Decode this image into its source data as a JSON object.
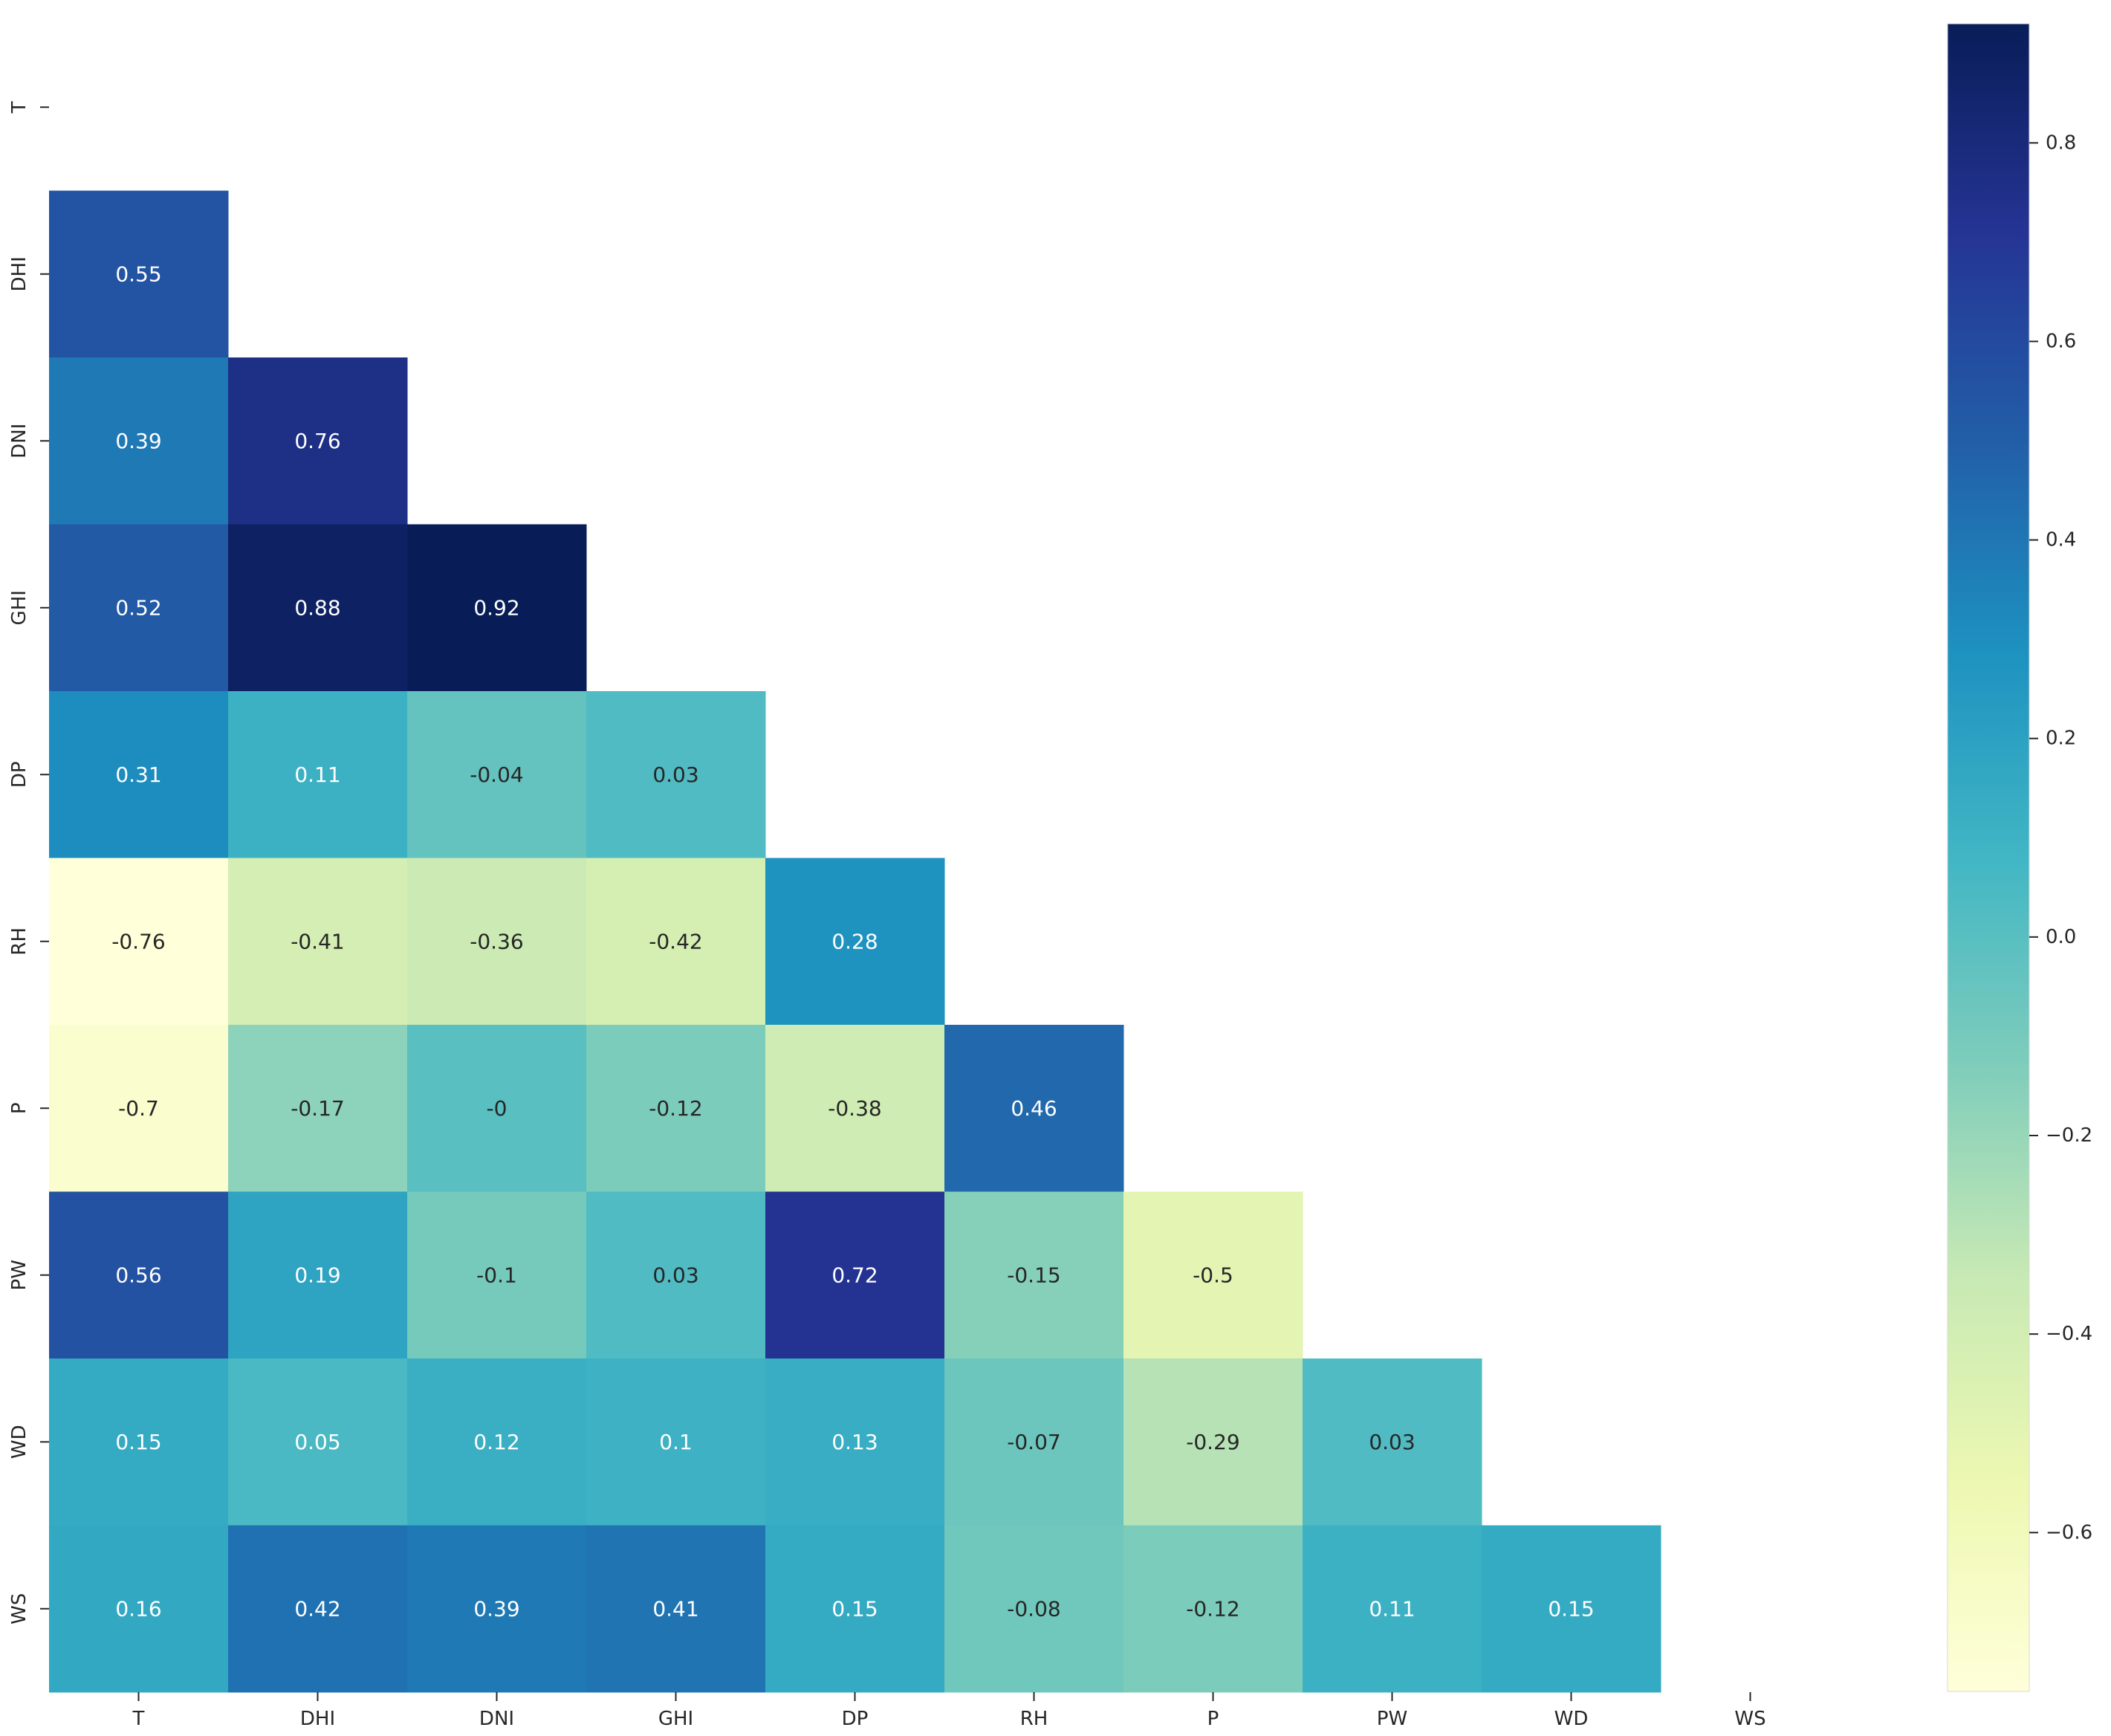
{
  "chart_data": {
    "type": "heatmap",
    "title": "",
    "xlabel": "",
    "ylabel": "",
    "x_labels": [
      "T",
      "DHI",
      "DNI",
      "GHI",
      "DP",
      "RH",
      "P",
      "PW",
      "WD",
      "WS"
    ],
    "y_labels": [
      "T",
      "DHI",
      "DNI",
      "GHI",
      "DP",
      "RH",
      "P",
      "PW",
      "WD",
      "WS"
    ],
    "mask": "upper-triangle-including-diagonal",
    "cells": [
      {
        "row": "DHI",
        "col": "T",
        "value": 0.55,
        "label": "0.55"
      },
      {
        "row": "DNI",
        "col": "T",
        "value": 0.39,
        "label": "0.39"
      },
      {
        "row": "DNI",
        "col": "DHI",
        "value": 0.76,
        "label": "0.76"
      },
      {
        "row": "GHI",
        "col": "T",
        "value": 0.52,
        "label": "0.52"
      },
      {
        "row": "GHI",
        "col": "DHI",
        "value": 0.88,
        "label": "0.88"
      },
      {
        "row": "GHI",
        "col": "DNI",
        "value": 0.92,
        "label": "0.92"
      },
      {
        "row": "DP",
        "col": "T",
        "value": 0.31,
        "label": "0.31"
      },
      {
        "row": "DP",
        "col": "DHI",
        "value": 0.11,
        "label": "0.11"
      },
      {
        "row": "DP",
        "col": "DNI",
        "value": -0.04,
        "label": "-0.04"
      },
      {
        "row": "DP",
        "col": "GHI",
        "value": 0.03,
        "label": "0.03"
      },
      {
        "row": "RH",
        "col": "T",
        "value": -0.76,
        "label": "-0.76"
      },
      {
        "row": "RH",
        "col": "DHI",
        "value": -0.41,
        "label": "-0.41"
      },
      {
        "row": "RH",
        "col": "DNI",
        "value": -0.36,
        "label": "-0.36"
      },
      {
        "row": "RH",
        "col": "GHI",
        "value": -0.42,
        "label": "-0.42"
      },
      {
        "row": "RH",
        "col": "DP",
        "value": 0.28,
        "label": "0.28"
      },
      {
        "row": "P",
        "col": "T",
        "value": -0.7,
        "label": "-0.7"
      },
      {
        "row": "P",
        "col": "DHI",
        "value": -0.17,
        "label": "-0.17"
      },
      {
        "row": "P",
        "col": "DNI",
        "value": 0,
        "label": "-0"
      },
      {
        "row": "P",
        "col": "GHI",
        "value": -0.12,
        "label": "-0.12"
      },
      {
        "row": "P",
        "col": "DP",
        "value": -0.38,
        "label": "-0.38"
      },
      {
        "row": "P",
        "col": "RH",
        "value": 0.46,
        "label": "0.46"
      },
      {
        "row": "PW",
        "col": "T",
        "value": 0.56,
        "label": "0.56"
      },
      {
        "row": "PW",
        "col": "DHI",
        "value": 0.19,
        "label": "0.19"
      },
      {
        "row": "PW",
        "col": "DNI",
        "value": -0.1,
        "label": "-0.1"
      },
      {
        "row": "PW",
        "col": "GHI",
        "value": 0.03,
        "label": "0.03"
      },
      {
        "row": "PW",
        "col": "DP",
        "value": 0.72,
        "label": "0.72"
      },
      {
        "row": "PW",
        "col": "RH",
        "value": -0.15,
        "label": "-0.15"
      },
      {
        "row": "PW",
        "col": "P",
        "value": -0.5,
        "label": "-0.5"
      },
      {
        "row": "WD",
        "col": "T",
        "value": 0.15,
        "label": "0.15"
      },
      {
        "row": "WD",
        "col": "DHI",
        "value": 0.05,
        "label": "0.05"
      },
      {
        "row": "WD",
        "col": "DNI",
        "value": 0.12,
        "label": "0.12"
      },
      {
        "row": "WD",
        "col": "GHI",
        "value": 0.1,
        "label": "0.1"
      },
      {
        "row": "WD",
        "col": "DP",
        "value": 0.13,
        "label": "0.13"
      },
      {
        "row": "WD",
        "col": "RH",
        "value": -0.07,
        "label": "-0.07"
      },
      {
        "row": "WD",
        "col": "P",
        "value": -0.29,
        "label": "-0.29"
      },
      {
        "row": "WD",
        "col": "PW",
        "value": 0.03,
        "label": "0.03"
      },
      {
        "row": "WS",
        "col": "T",
        "value": 0.16,
        "label": "0.16"
      },
      {
        "row": "WS",
        "col": "DHI",
        "value": 0.42,
        "label": "0.42"
      },
      {
        "row": "WS",
        "col": "DNI",
        "value": 0.39,
        "label": "0.39"
      },
      {
        "row": "WS",
        "col": "GHI",
        "value": 0.41,
        "label": "0.41"
      },
      {
        "row": "WS",
        "col": "DP",
        "value": 0.15,
        "label": "0.15"
      },
      {
        "row": "WS",
        "col": "RH",
        "value": -0.08,
        "label": "-0.08"
      },
      {
        "row": "WS",
        "col": "P",
        "value": -0.12,
        "label": "-0.12"
      },
      {
        "row": "WS",
        "col": "PW",
        "value": 0.11,
        "label": "0.11"
      },
      {
        "row": "WS",
        "col": "WD",
        "value": 0.15,
        "label": "0.15"
      }
    ],
    "colormap": "YlGnBu",
    "colorbar": {
      "range": [
        -0.76,
        0.92
      ],
      "ticks": [
        0.8,
        0.6,
        0.4,
        0.2,
        0.0,
        -0.2,
        -0.4,
        -0.6
      ],
      "tick_labels": [
        "0.8",
        "0.6",
        "0.4",
        "0.2",
        "0.0",
        "−0.2",
        "−0.4",
        "−0.6"
      ],
      "placement": "right"
    },
    "colors": {
      "text_dark_value": "#262626",
      "text_light_value": "#ffffff",
      "axis_text": "#262626"
    }
  }
}
